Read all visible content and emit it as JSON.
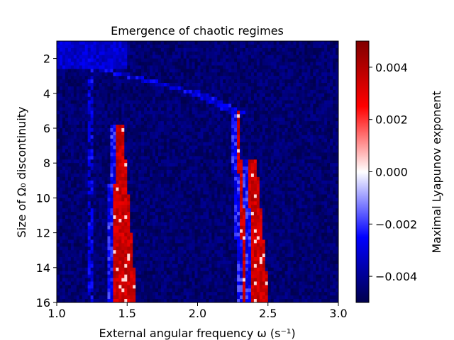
{
  "chart_data": {
    "type": "heatmap",
    "title": "Emergence of chaotic regimes",
    "xlabel": "External angular frequency ω (s⁻¹)",
    "ylabel": "Size of Ω₀ discontinuity",
    "colorbar_label": "Maximal Lyapunov exponent",
    "colormap": "seismic",
    "xlim": [
      1.0,
      3.0
    ],
    "ylim": [
      16,
      1
    ],
    "y_inverted": true,
    "clim": [
      -0.005,
      0.005
    ],
    "x_ticks": [
      1.0,
      1.5,
      2.0,
      2.5,
      3.0
    ],
    "x_tick_labels": [
      "1.0",
      "1.5",
      "2.0",
      "2.5",
      "3.0"
    ],
    "y_ticks": [
      2,
      4,
      6,
      8,
      10,
      12,
      14,
      16
    ],
    "y_tick_labels": [
      "2",
      "4",
      "6",
      "8",
      "10",
      "12",
      "14",
      "16"
    ],
    "colorbar_ticks": [
      0.004,
      0.002,
      0.0,
      -0.002,
      -0.004
    ],
    "colorbar_tick_labels": [
      "0.004",
      "0.002",
      "0.000",
      "−0.002",
      "−0.004"
    ],
    "grid": false,
    "background_value": -0.0045,
    "chaotic_regions": [
      {
        "omega_left_at_top": 1.42,
        "omega_left_at_bottom": 1.39,
        "omega_right_at_top": 1.47,
        "omega_right_at_bottom": 1.57,
        "size_top": 5.8,
        "size_bottom": 16,
        "value": 0.0035
      },
      {
        "omega_left_at_top": 2.27,
        "omega_left_at_bottom": 2.33,
        "omega_right_at_top": 2.29,
        "omega_right_at_bottom": 2.37,
        "size_top": 5.0,
        "size_bottom": 16,
        "value": 0.0035
      },
      {
        "omega_left_at_top": 2.36,
        "omega_left_at_bottom": 2.39,
        "omega_right_at_top": 2.42,
        "omega_right_at_bottom": 2.51,
        "size_top": 7.8,
        "size_bottom": 16,
        "value": 0.0035
      }
    ],
    "transition_band": {
      "omega_at_size_2": 1.0,
      "omega_at_size_4": 2.0,
      "omega_at_size_5": 2.25,
      "value": -0.003
    }
  }
}
